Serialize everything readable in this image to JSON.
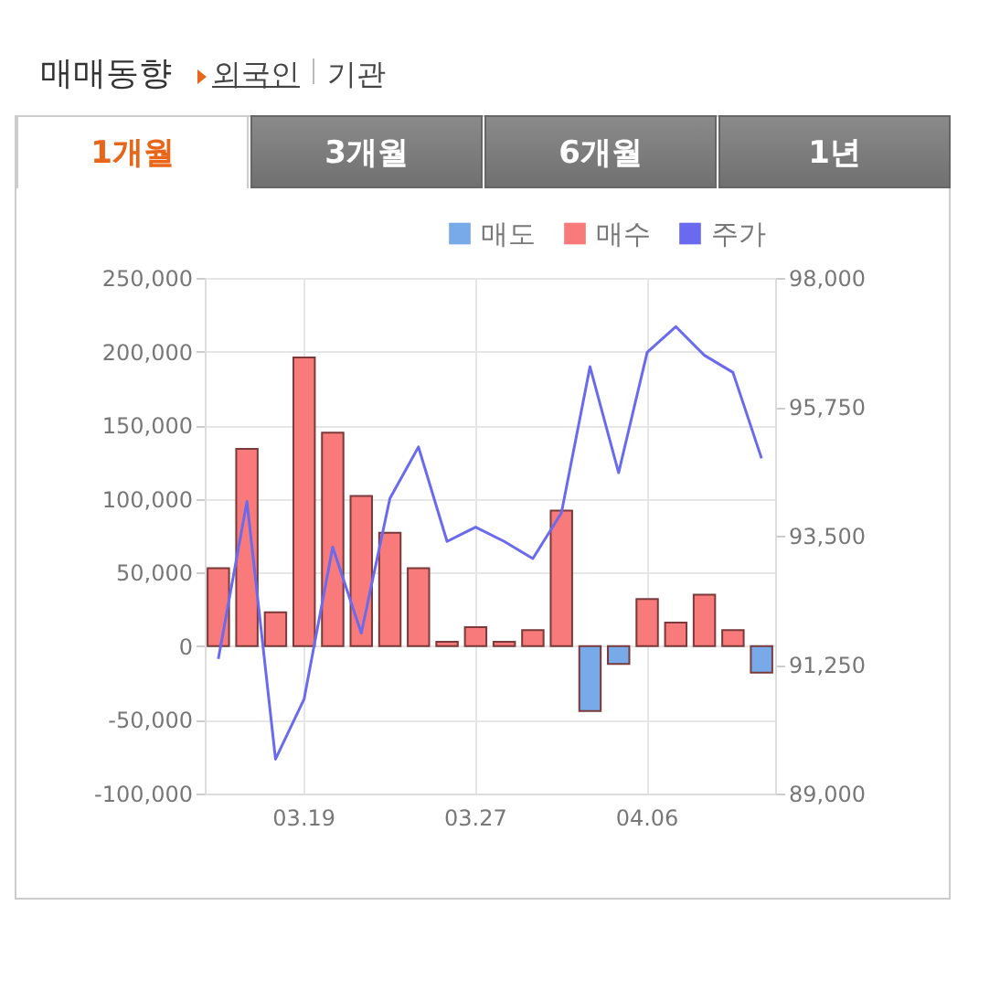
{
  "chart_data": {
    "type": "bar",
    "title": "매매동향",
    "annotations": [
      "외국인",
      "기관",
      "1개월",
      "3개월",
      "6개월",
      "1년"
    ],
    "categories": [
      null,
      null,
      null,
      "03.19",
      null,
      null,
      null,
      null,
      null,
      "03.27",
      null,
      null,
      null,
      null,
      null,
      "04.06",
      null,
      null,
      null,
      null
    ],
    "series": [
      {
        "name": "매도",
        "color": "#78aaea",
        "values": [
          null,
          null,
          null,
          null,
          null,
          null,
          null,
          null,
          null,
          null,
          null,
          null,
          null,
          -44000,
          -12000,
          null,
          null,
          null,
          null,
          -18000
        ]
      },
      {
        "name": "매수",
        "color": "#f87a7a",
        "values": [
          53000,
          134000,
          23000,
          196000,
          145000,
          102000,
          77000,
          53000,
          3000,
          13000,
          3000,
          11000,
          92000,
          null,
          null,
          32000,
          16000,
          35000,
          11000,
          null
        ]
      },
      {
        "name": "주가",
        "type": "line",
        "axis": "y2",
        "color": "#6a6aee",
        "values": [
          91350,
          94100,
          89600,
          90650,
          93300,
          91800,
          94150,
          95050,
          93400,
          93650,
          93400,
          93100,
          93900,
          96450,
          94600,
          96700,
          97150,
          96650,
          96350,
          94850
        ]
      }
    ],
    "ylim": [
      -100000,
      250000
    ],
    "yticks": [
      {
        "value": -100000,
        "label": "-100,000"
      },
      {
        "value": -50000,
        "label": "-50,000"
      },
      0,
      {
        "value": 50000,
        "label": "50,000"
      },
      {
        "value": 100000,
        "label": "100,000"
      },
      {
        "value": 150000,
        "label": "150,000"
      },
      {
        "value": 200000,
        "label": "200,000"
      },
      {
        "value": 250000,
        "label": "250,000"
      }
    ],
    "y2lim": [
      89000,
      98000
    ],
    "y2ticks": [
      {
        "value": 89000,
        "label": "89,000"
      },
      {
        "value": 91250,
        "label": "91,250"
      },
      {
        "value": 93500,
        "label": "93,500"
      },
      {
        "value": 95750,
        "label": "95,750"
      },
      {
        "value": 98000,
        "label": "98,000"
      }
    ],
    "grid": true,
    "legend": "top right"
  }
}
